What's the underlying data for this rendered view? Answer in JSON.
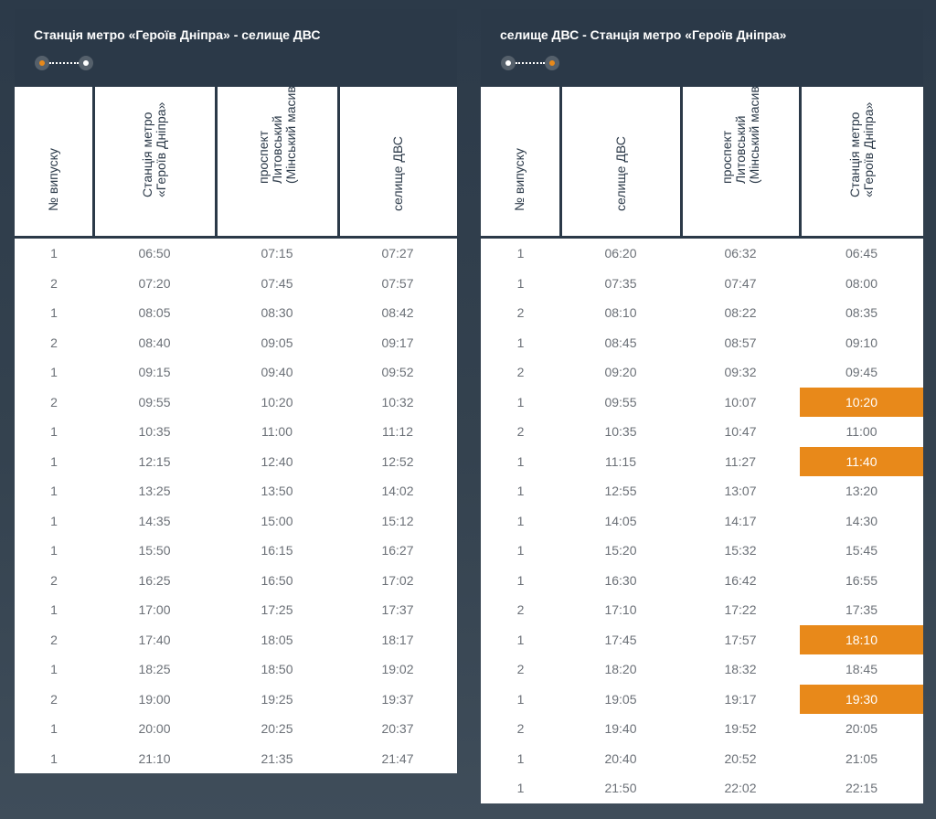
{
  "colors": {
    "accent": "#e8891a",
    "header": "#2b3948"
  },
  "panels": [
    {
      "title": "Станція метро «Героїв Дніпра» - селище ДВС",
      "route_icon": "route-start-to-end-icon",
      "columns": [
        "№ випуску",
        "Станція метро\n«Героїв Дніпра»",
        "проспект\nЛитовський\n(Мінський масив)",
        "селище ДВС"
      ],
      "rows": [
        {
          "issue": "1",
          "times": [
            "06:50",
            "07:15",
            "07:27"
          ]
        },
        {
          "issue": "2",
          "times": [
            "07:20",
            "07:45",
            "07:57"
          ]
        },
        {
          "issue": "1",
          "times": [
            "08:05",
            "08:30",
            "08:42"
          ]
        },
        {
          "issue": "2",
          "times": [
            "08:40",
            "09:05",
            "09:17"
          ]
        },
        {
          "issue": "1",
          "times": [
            "09:15",
            "09:40",
            "09:52"
          ]
        },
        {
          "issue": "2",
          "times": [
            "09:55",
            "10:20",
            "10:32"
          ]
        },
        {
          "issue": "1",
          "times": [
            "10:35",
            "11:00",
            "11:12"
          ]
        },
        {
          "issue": "1",
          "times": [
            "12:15",
            "12:40",
            "12:52"
          ]
        },
        {
          "issue": "1",
          "times": [
            "13:25",
            "13:50",
            "14:02"
          ]
        },
        {
          "issue": "1",
          "times": [
            "14:35",
            "15:00",
            "15:12"
          ]
        },
        {
          "issue": "1",
          "times": [
            "15:50",
            "16:15",
            "16:27"
          ]
        },
        {
          "issue": "2",
          "times": [
            "16:25",
            "16:50",
            "17:02"
          ]
        },
        {
          "issue": "1",
          "times": [
            "17:00",
            "17:25",
            "17:37"
          ]
        },
        {
          "issue": "2",
          "times": [
            "17:40",
            "18:05",
            "18:17"
          ]
        },
        {
          "issue": "1",
          "times": [
            "18:25",
            "18:50",
            "19:02"
          ]
        },
        {
          "issue": "2",
          "times": [
            "19:00",
            "19:25",
            "19:37"
          ]
        },
        {
          "issue": "1",
          "times": [
            "20:00",
            "20:25",
            "20:37"
          ]
        },
        {
          "issue": "1",
          "times": [
            "21:10",
            "21:35",
            "21:47"
          ]
        }
      ]
    },
    {
      "title": "селище ДВС - Станція метро «Героїв Дніпра»",
      "route_icon": "route-end-to-start-icon",
      "columns": [
        "№ випуску",
        "селище ДВС",
        "проспект\nЛитовський\n(Мінський масив)",
        "Станція метро\n«Героїв Дніпра»"
      ],
      "rows": [
        {
          "issue": "1",
          "times": [
            "06:20",
            "06:32",
            "06:45"
          ]
        },
        {
          "issue": "1",
          "times": [
            "07:35",
            "07:47",
            "08:00"
          ]
        },
        {
          "issue": "2",
          "times": [
            "08:10",
            "08:22",
            "08:35"
          ]
        },
        {
          "issue": "1",
          "times": [
            "08:45",
            "08:57",
            "09:10"
          ]
        },
        {
          "issue": "2",
          "times": [
            "09:20",
            "09:32",
            "09:45"
          ]
        },
        {
          "issue": "1",
          "times": [
            "09:55",
            "10:07",
            "10:20"
          ],
          "highlight": 2
        },
        {
          "issue": "2",
          "times": [
            "10:35",
            "10:47",
            "11:00"
          ]
        },
        {
          "issue": "1",
          "times": [
            "11:15",
            "11:27",
            "11:40"
          ],
          "highlight": 2
        },
        {
          "issue": "1",
          "times": [
            "12:55",
            "13:07",
            "13:20"
          ]
        },
        {
          "issue": "1",
          "times": [
            "14:05",
            "14:17",
            "14:30"
          ]
        },
        {
          "issue": "1",
          "times": [
            "15:20",
            "15:32",
            "15:45"
          ]
        },
        {
          "issue": "1",
          "times": [
            "16:30",
            "16:42",
            "16:55"
          ]
        },
        {
          "issue": "2",
          "times": [
            "17:10",
            "17:22",
            "17:35"
          ]
        },
        {
          "issue": "1",
          "times": [
            "17:45",
            "17:57",
            "18:10"
          ],
          "highlight": 2
        },
        {
          "issue": "2",
          "times": [
            "18:20",
            "18:32",
            "18:45"
          ]
        },
        {
          "issue": "1",
          "times": [
            "19:05",
            "19:17",
            "19:30"
          ],
          "highlight": 2
        },
        {
          "issue": "2",
          "times": [
            "19:40",
            "19:52",
            "20:05"
          ]
        },
        {
          "issue": "1",
          "times": [
            "20:40",
            "20:52",
            "21:05"
          ]
        },
        {
          "issue": "1",
          "times": [
            "21:50",
            "22:02",
            "22:15"
          ]
        }
      ]
    }
  ]
}
